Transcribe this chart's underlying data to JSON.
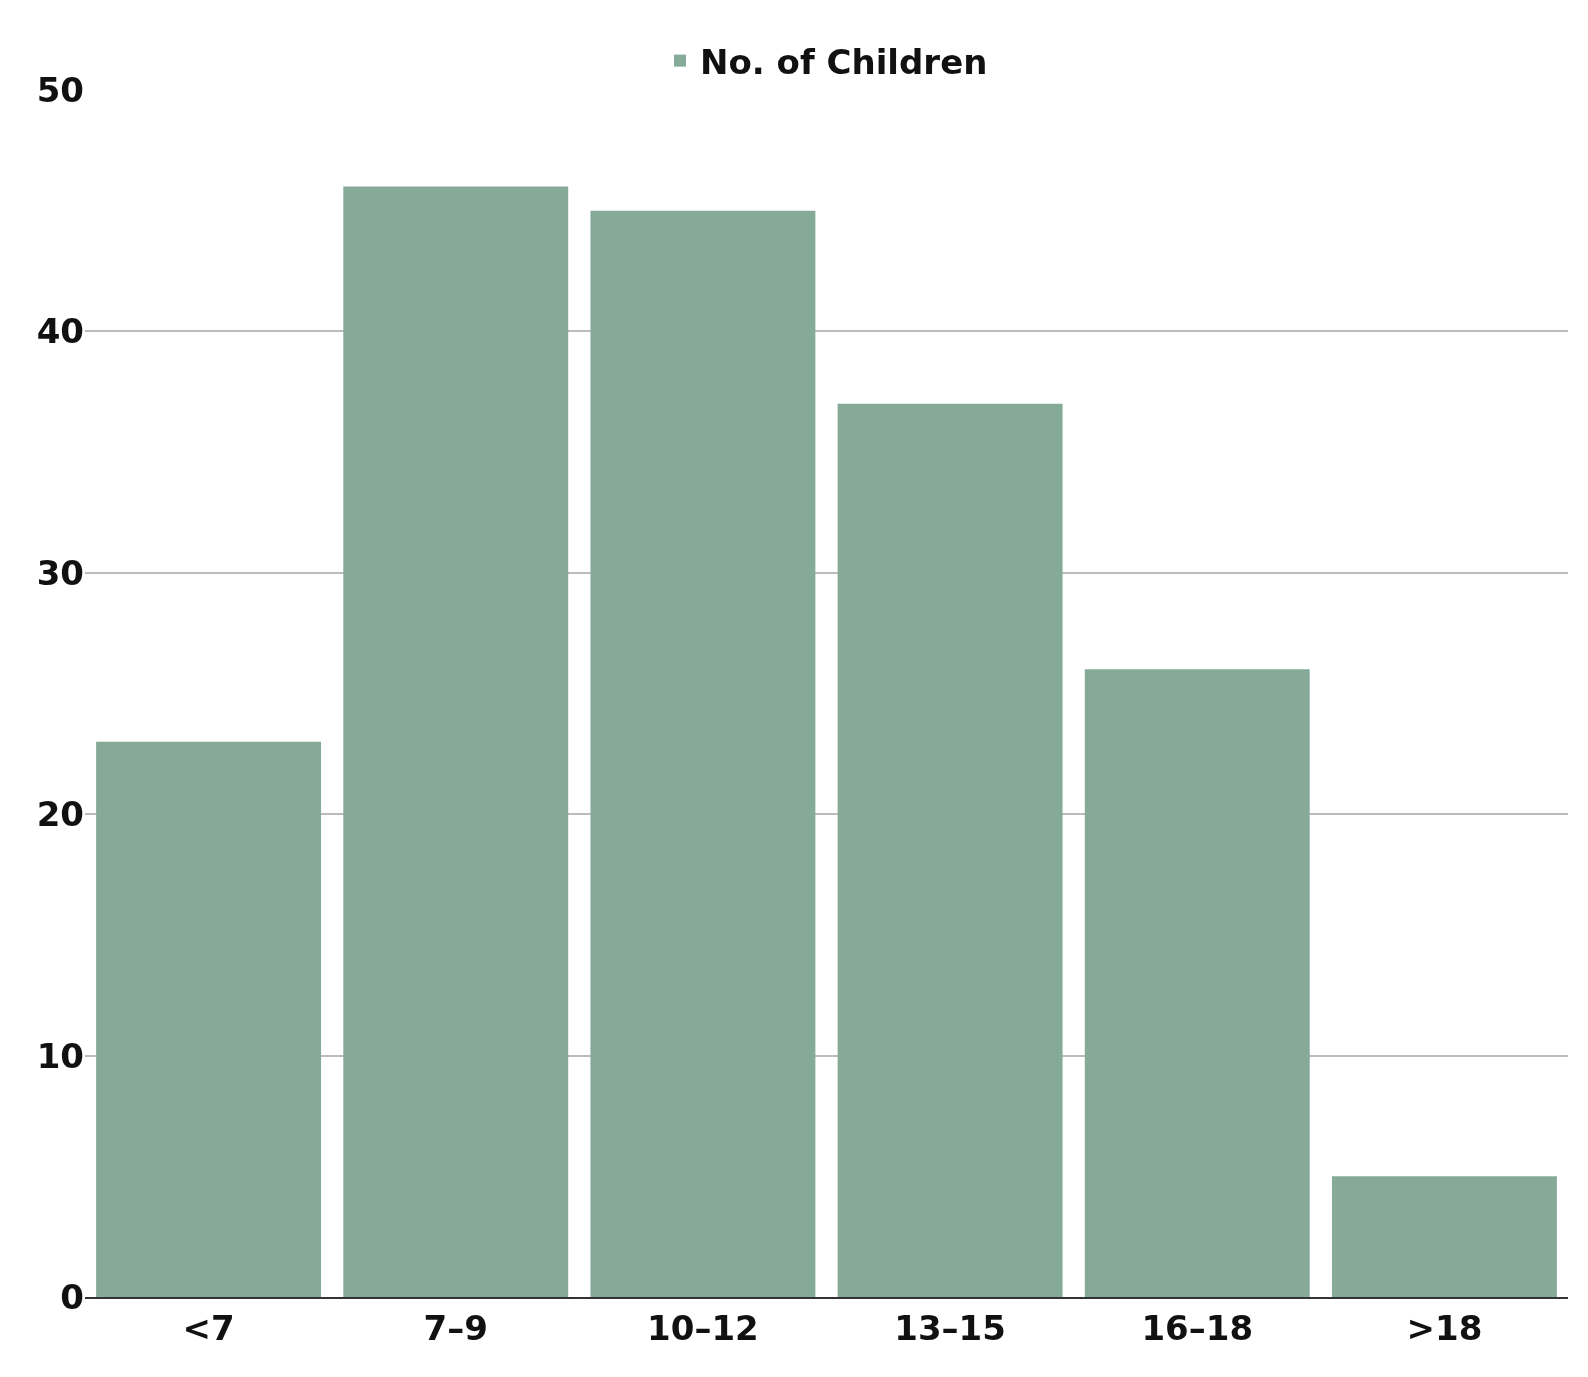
{
  "chart_data": {
    "type": "bar",
    "categories": [
      "<7",
      "7–9",
      "10–12",
      "13–15",
      "16–18",
      ">18"
    ],
    "series": [
      {
        "name": "No. of Children",
        "color": "#85aa98",
        "values": [
          23,
          46,
          45,
          37,
          26,
          5
        ]
      }
    ],
    "ylim": [
      0,
      50
    ],
    "yticks": [
      0,
      10,
      20,
      30,
      40,
      50
    ],
    "grid": "y",
    "legend": "top"
  }
}
